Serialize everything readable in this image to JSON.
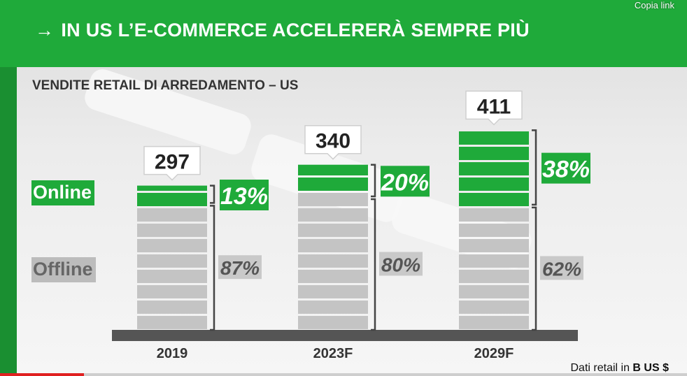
{
  "header": {
    "arrow": "→",
    "title": "IN US L’E-COMMERCE ACCELERERÀ SEMPRE PIÙ",
    "copy_link": "Copia link"
  },
  "footnote": {
    "prefix": "Dati retail in ",
    "unit": "B US $"
  },
  "colors": {
    "online": "#1faa3a",
    "offline": "#c4c4c4",
    "brand_green": "#1faa3a",
    "axis": "#555555"
  },
  "chart_data": {
    "type": "bar",
    "title": "VENDITE RETAIL DI ARREDAMENTO – US",
    "categories": [
      "2019",
      "2023F",
      "2029F"
    ],
    "totals": [
      297,
      340,
      411
    ],
    "series": [
      {
        "name": "Online",
        "share_labels": [
          "13%",
          "20%",
          "38%"
        ],
        "share": [
          13,
          20,
          38
        ]
      },
      {
        "name": "Offline",
        "share_labels": [
          "87%",
          "80%",
          "62%"
        ],
        "share": [
          87,
          80,
          62
        ]
      }
    ]
  }
}
